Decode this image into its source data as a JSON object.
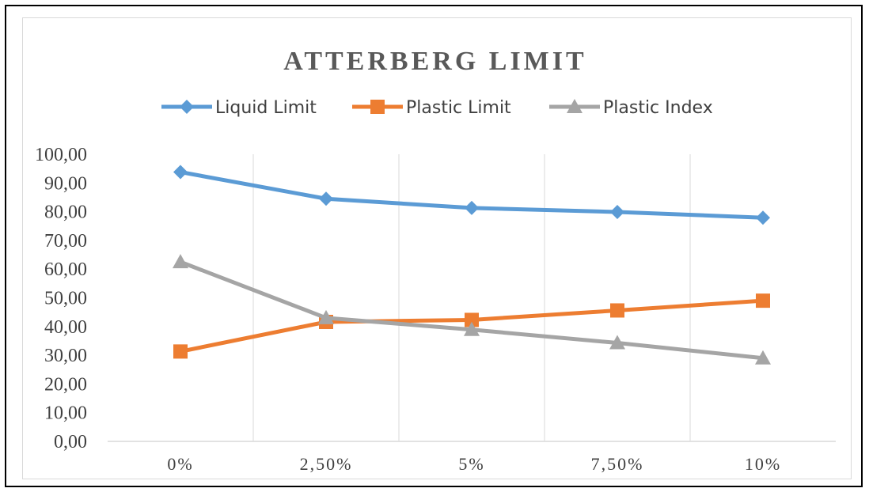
{
  "chart_data": {
    "type": "line",
    "title": "ATTERBERG LIMIT",
    "xlabel": "",
    "ylabel": "",
    "categories": [
      "0%",
      "2,50%",
      "5%",
      "7,50%",
      "10%"
    ],
    "yticks": [
      "0,00",
      "10,00",
      "20,00",
      "30,00",
      "40,00",
      "50,00",
      "60,00",
      "70,00",
      "80,00",
      "90,00",
      "100,00"
    ],
    "ylim": [
      0,
      100
    ],
    "grid": "vertical",
    "legend": "top",
    "series": [
      {
        "name": "Liquid Limit",
        "values": [
          93.8,
          84.5,
          81.3,
          79.9,
          77.9
        ],
        "color": "#5b9bd5",
        "marker": "diamond"
      },
      {
        "name": "Plastic Limit",
        "values": [
          31.3,
          41.6,
          42.3,
          45.6,
          49.0
        ],
        "color": "#ed7d31",
        "marker": "square"
      },
      {
        "name": "Plastic Index",
        "values": [
          62.5,
          43.0,
          38.9,
          34.3,
          29.0
        ],
        "color": "#a5a5a5",
        "marker": "triangle"
      }
    ]
  }
}
